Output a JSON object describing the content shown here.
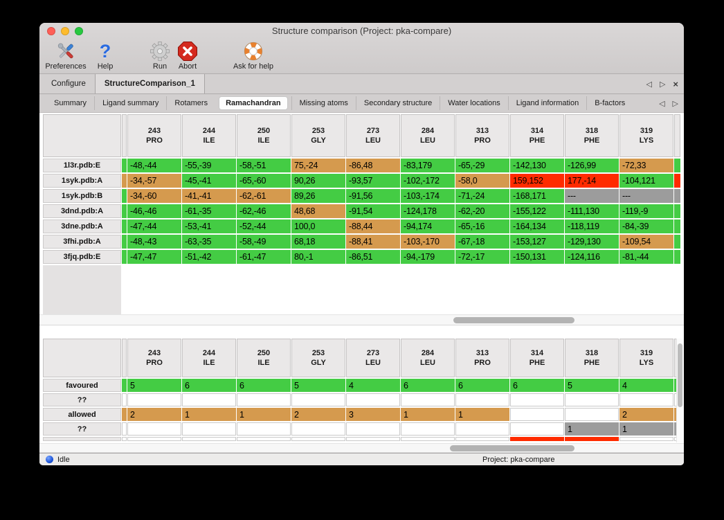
{
  "colors": {
    "green": "#44cc44",
    "orange": "#d59a4e",
    "red": "#ff2b00",
    "gray": "#9c9c9c"
  },
  "window": {
    "title": "Structure comparison (Project: pka-compare)"
  },
  "toolbar": [
    {
      "label": "Preferences",
      "icon": "tools-icon"
    },
    {
      "label": "Help",
      "icon": "question-icon"
    },
    {
      "label": "Run",
      "icon": "gear-icon"
    },
    {
      "label": "Abort",
      "icon": "stop-icon"
    },
    {
      "label": "Ask for help",
      "icon": "lifebuoy-icon"
    }
  ],
  "main_tabs": {
    "items": [
      {
        "label": "Configure",
        "active": false
      },
      {
        "label": "StructureComparison_1",
        "active": true
      }
    ],
    "controls": {
      "scroll_left": "◁",
      "scroll_right": "▷",
      "close": "×"
    }
  },
  "sub_tabs": {
    "items": [
      "Summary",
      "Ligand summary",
      "Rotamers",
      "Ramachandran",
      "Missing atoms",
      "Secondary structure",
      "Water locations",
      "Ligand information",
      "B-factors"
    ],
    "selected": "Ramachandran",
    "controls": {
      "scroll_left": "◁",
      "scroll_right": "▷"
    }
  },
  "columns": [
    {
      "num": "243",
      "res": "PRO"
    },
    {
      "num": "244",
      "res": "ILE"
    },
    {
      "num": "250",
      "res": "ILE"
    },
    {
      "num": "253",
      "res": "GLY"
    },
    {
      "num": "273",
      "res": "LEU"
    },
    {
      "num": "284",
      "res": "LEU"
    },
    {
      "num": "313",
      "res": "PRO"
    },
    {
      "num": "314",
      "res": "PHE"
    },
    {
      "num": "318",
      "res": "PHE"
    },
    {
      "num": "319",
      "res": "LYS"
    }
  ],
  "detail_table": {
    "rows": [
      {
        "label": "1l3r.pdb:E",
        "edge_left": "green",
        "edge_right": "green",
        "cells": [
          {
            "v": "-48,-44",
            "c": "green"
          },
          {
            "v": "-55,-39",
            "c": "green"
          },
          {
            "v": "-58,-51",
            "c": "green"
          },
          {
            "v": "75,-24",
            "c": "orange"
          },
          {
            "v": "-86,48",
            "c": "orange"
          },
          {
            "v": "-83,179",
            "c": "green"
          },
          {
            "v": "-65,-29",
            "c": "green"
          },
          {
            "v": "-142,130",
            "c": "green"
          },
          {
            "v": "-126,99",
            "c": "green"
          },
          {
            "v": "-72,33",
            "c": "orange"
          }
        ]
      },
      {
        "label": "1syk.pdb:A",
        "edge_left": "orange",
        "edge_right": "red",
        "cells": [
          {
            "v": "-34,-57",
            "c": "orange"
          },
          {
            "v": "-45,-41",
            "c": "green"
          },
          {
            "v": "-65,-60",
            "c": "green"
          },
          {
            "v": "90,26",
            "c": "green"
          },
          {
            "v": "-93,57",
            "c": "green"
          },
          {
            "v": "-102,-172",
            "c": "green"
          },
          {
            "v": "-58,0",
            "c": "orange"
          },
          {
            "v": "159,152",
            "c": "red"
          },
          {
            "v": "177,-14",
            "c": "red"
          },
          {
            "v": "-104,121",
            "c": "green"
          }
        ]
      },
      {
        "label": "1syk.pdb:B",
        "edge_left": "green",
        "edge_right": "gray",
        "cells": [
          {
            "v": "-34,-60",
            "c": "orange"
          },
          {
            "v": "-41,-41",
            "c": "orange"
          },
          {
            "v": "-62,-61",
            "c": "orange"
          },
          {
            "v": "89,26",
            "c": "green"
          },
          {
            "v": "-91,56",
            "c": "green"
          },
          {
            "v": "-103,-174",
            "c": "green"
          },
          {
            "v": "-71,-24",
            "c": "green"
          },
          {
            "v": "-168,171",
            "c": "green"
          },
          {
            "v": "---",
            "c": "gray"
          },
          {
            "v": "---",
            "c": "gray"
          }
        ]
      },
      {
        "label": "3dnd.pdb:A",
        "edge_left": "green",
        "edge_right": "green",
        "cells": [
          {
            "v": "-46,-46",
            "c": "green"
          },
          {
            "v": "-61,-35",
            "c": "green"
          },
          {
            "v": "-62,-46",
            "c": "green"
          },
          {
            "v": "48,68",
            "c": "orange"
          },
          {
            "v": "-91,54",
            "c": "green"
          },
          {
            "v": "-124,178",
            "c": "green"
          },
          {
            "v": "-62,-20",
            "c": "green"
          },
          {
            "v": "-155,122",
            "c": "green"
          },
          {
            "v": "-111,130",
            "c": "green"
          },
          {
            "v": "-119,-9",
            "c": "green"
          }
        ]
      },
      {
        "label": "3dne.pdb:A",
        "edge_left": "green",
        "edge_right": "green",
        "cells": [
          {
            "v": "-47,-44",
            "c": "green"
          },
          {
            "v": "-53,-41",
            "c": "green"
          },
          {
            "v": "-52,-44",
            "c": "green"
          },
          {
            "v": "100,0",
            "c": "green"
          },
          {
            "v": "-88,44",
            "c": "orange"
          },
          {
            "v": "-94,174",
            "c": "green"
          },
          {
            "v": "-65,-16",
            "c": "green"
          },
          {
            "v": "-164,134",
            "c": "green"
          },
          {
            "v": "-118,119",
            "c": "green"
          },
          {
            "v": "-84,-39",
            "c": "green"
          }
        ]
      },
      {
        "label": "3fhi.pdb:A",
        "edge_left": "green",
        "edge_right": "green",
        "cells": [
          {
            "v": "-48,-43",
            "c": "green"
          },
          {
            "v": "-63,-35",
            "c": "green"
          },
          {
            "v": "-58,-49",
            "c": "green"
          },
          {
            "v": "68,18",
            "c": "green"
          },
          {
            "v": "-88,41",
            "c": "orange"
          },
          {
            "v": "-103,-170",
            "c": "orange"
          },
          {
            "v": "-67,-18",
            "c": "green"
          },
          {
            "v": "-153,127",
            "c": "green"
          },
          {
            "v": "-129,130",
            "c": "green"
          },
          {
            "v": "-109,54",
            "c": "orange"
          }
        ]
      },
      {
        "label": "3fjq.pdb:E",
        "edge_left": "green",
        "edge_right": "green",
        "cells": [
          {
            "v": "-47,-47",
            "c": "green"
          },
          {
            "v": "-51,-42",
            "c": "green"
          },
          {
            "v": "-61,-47",
            "c": "green"
          },
          {
            "v": "80,-1",
            "c": "green"
          },
          {
            "v": "-86,51",
            "c": "green"
          },
          {
            "v": "-94,-179",
            "c": "green"
          },
          {
            "v": "-72,-17",
            "c": "green"
          },
          {
            "v": "-150,131",
            "c": "green"
          },
          {
            "v": "-124,116",
            "c": "green"
          },
          {
            "v": "-81,-44",
            "c": "green"
          }
        ]
      }
    ]
  },
  "summary_table": {
    "rows": [
      {
        "label": "favoured",
        "edge_left": "green",
        "edge_right": "green",
        "cells": [
          {
            "v": "5",
            "c": "green"
          },
          {
            "v": "6",
            "c": "green"
          },
          {
            "v": "6",
            "c": "green"
          },
          {
            "v": "5",
            "c": "green"
          },
          {
            "v": "4",
            "c": "green"
          },
          {
            "v": "6",
            "c": "green"
          },
          {
            "v": "6",
            "c": "green"
          },
          {
            "v": "6",
            "c": "green"
          },
          {
            "v": "5",
            "c": "green"
          },
          {
            "v": "4",
            "c": "green"
          }
        ]
      },
      {
        "label": "??",
        "edge_left": "white",
        "edge_right": "white",
        "cells": [
          {
            "v": "",
            "c": "white"
          },
          {
            "v": "",
            "c": "white"
          },
          {
            "v": "",
            "c": "white"
          },
          {
            "v": "",
            "c": "white"
          },
          {
            "v": "",
            "c": "white"
          },
          {
            "v": "",
            "c": "white"
          },
          {
            "v": "",
            "c": "white"
          },
          {
            "v": "",
            "c": "white"
          },
          {
            "v": "",
            "c": "white"
          },
          {
            "v": "",
            "c": "white"
          }
        ]
      },
      {
        "label": "allowed",
        "edge_left": "orange",
        "edge_right": "orange",
        "cells": [
          {
            "v": "2",
            "c": "orange"
          },
          {
            "v": "1",
            "c": "orange"
          },
          {
            "v": "1",
            "c": "orange"
          },
          {
            "v": "2",
            "c": "orange"
          },
          {
            "v": "3",
            "c": "orange"
          },
          {
            "v": "1",
            "c": "orange"
          },
          {
            "v": "1",
            "c": "orange"
          },
          {
            "v": "",
            "c": "white"
          },
          {
            "v": "",
            "c": "white"
          },
          {
            "v": "2",
            "c": "orange"
          }
        ]
      },
      {
        "label": "??",
        "edge_left": "white",
        "edge_right": "gray",
        "cells": [
          {
            "v": "",
            "c": "white"
          },
          {
            "v": "",
            "c": "white"
          },
          {
            "v": "",
            "c": "white"
          },
          {
            "v": "",
            "c": "white"
          },
          {
            "v": "",
            "c": "white"
          },
          {
            "v": "",
            "c": "white"
          },
          {
            "v": "",
            "c": "white"
          },
          {
            "v": "",
            "c": "white"
          },
          {
            "v": "1",
            "c": "gray"
          },
          {
            "v": "1",
            "c": "gray"
          }
        ]
      }
    ],
    "partial_row": {
      "cells": [
        {
          "c": "white"
        },
        {
          "c": "white"
        },
        {
          "c": "white"
        },
        {
          "c": "white"
        },
        {
          "c": "white"
        },
        {
          "c": "white"
        },
        {
          "c": "white"
        },
        {
          "c": "red"
        },
        {
          "c": "red"
        },
        {
          "c": "white"
        }
      ]
    }
  },
  "status_bar": {
    "status": "Idle",
    "project": "Project: pka-compare"
  }
}
